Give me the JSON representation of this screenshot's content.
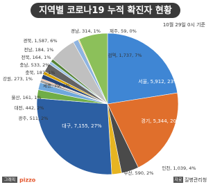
{
  "chart_data": {
    "type": "pie",
    "title": "지역별 코로나19 누적 확진자 현황",
    "subtitle": "10월 29일 0시 기준",
    "categories": [
      "서울",
      "경기",
      "인천",
      "부산",
      "대구",
      "광주",
      "대전",
      "울산",
      "세종",
      "강원",
      "충북",
      "충남",
      "전북",
      "전남",
      "경북",
      "경남",
      "제주",
      "검역"
    ],
    "values": [
      5912,
      5344,
      1039,
      590,
      7155,
      511,
      442,
      161,
      79,
      273,
      187,
      533,
      164,
      184,
      1587,
      314,
      59,
      1737
    ],
    "value_labels": [
      "서울, 5,912, 23%",
      "경기, 5,344, 20%",
      "인천, 1,039, 4%",
      "부산, 590, 2%",
      "대구, 7,155, 27%",
      "광주, 511, 2%",
      "대전, 442, 2%",
      "울산, 161, 1%",
      "세종, 79, 0%",
      "강원, 273, 1%",
      "충북, 187, 1%",
      "충남, 533, 2%",
      "전북, 164, 1%",
      "전남, 184, 1%",
      "경북, 1,587, 6%",
      "경남, 314, 1%",
      "제주, 59, 0%",
      "검역, 1,737, 7%"
    ],
    "colors": [
      "#3f86d4",
      "#e06f2c",
      "#4a4a4a",
      "#e6b422",
      "#2c5fa3",
      "#70ad47",
      "#6fa8dc",
      "#9e9e9e",
      "#f4b183",
      "#264478",
      "#d9a300",
      "#636363",
      "#9dc3e6",
      "#548235",
      "#c0c0c0",
      "#8fb4e0",
      "#f2c94c",
      "#8cc05a"
    ]
  },
  "footer": {
    "graphic": "그래픽",
    "brand": "pizzo",
    "source_tag": "자료",
    "source": "질병관리청"
  }
}
